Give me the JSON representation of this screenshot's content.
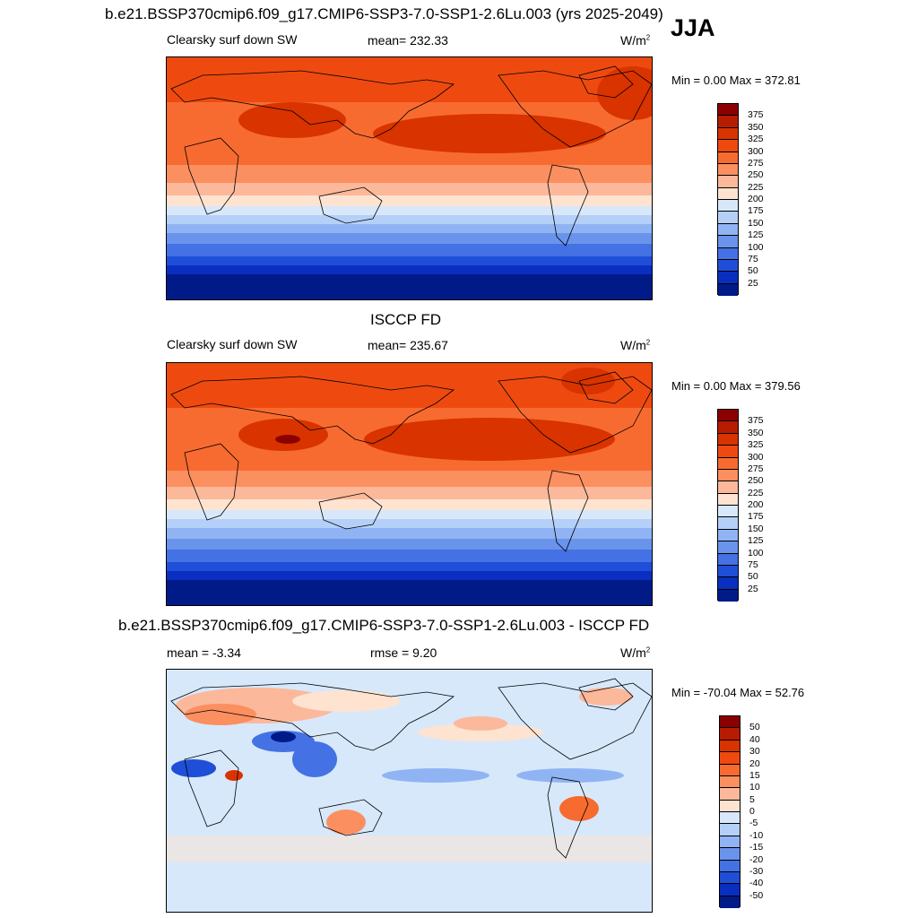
{
  "header": {
    "title": "b.e21.BSSP370cmip6.f09_g17.CMIP6-SSP3-7.0-SSP1-2.6Lu.003 (yrs 2025-2049)",
    "season": "JJA"
  },
  "panels": [
    {
      "id": "model",
      "title": "",
      "left_label": "Clearsky surf down SW",
      "center_label": "mean= 232.33",
      "units": "W/m",
      "units_sup": "2",
      "minmax": "Min =   0.00 Max = 372.81"
    },
    {
      "id": "obs",
      "title": "ISCCP FD",
      "left_label": "Clearsky surf down SW",
      "center_label": "mean= 235.67",
      "units": "W/m",
      "units_sup": "2",
      "minmax": "Min =   0.00 Max = 379.56"
    },
    {
      "id": "diff",
      "title": "b.e21.BSSP370cmip6.f09_g17.CMIP6-SSP3-7.0-SSP1-2.6Lu.003 - ISCCP FD",
      "left_label": "mean =  -3.34",
      "center_label": "rmse =    9.20",
      "units": "W/m",
      "units_sup": "2",
      "minmax": "Min = -70.04 Max =  52.76"
    }
  ],
  "colorbars": {
    "absolute": {
      "labels": [
        "375",
        "350",
        "325",
        "300",
        "275",
        "250",
        "225",
        "200",
        "175",
        "150",
        "125",
        "100",
        "75",
        "50",
        "25"
      ],
      "colors": [
        "#8b0000",
        "#b81c00",
        "#d93300",
        "#ee4a10",
        "#f86b30",
        "#fb8f60",
        "#fcb89a",
        "#fde3d0",
        "#d7e8fb",
        "#b5d0f8",
        "#90b4f3",
        "#6a93ec",
        "#4472e4",
        "#1f4fd8",
        "#0a2ec0",
        "#001a88"
      ]
    },
    "difference": {
      "labels": [
        "50",
        "40",
        "30",
        "20",
        "15",
        "10",
        "5",
        "0",
        "-5",
        "-10",
        "-15",
        "-20",
        "-30",
        "-40",
        "-50"
      ],
      "colors": [
        "#8b0000",
        "#b81c00",
        "#d93300",
        "#ee4a10",
        "#f86b30",
        "#fb8f60",
        "#fcb89a",
        "#fde3d0",
        "#d7e8fb",
        "#b5d0f8",
        "#90b4f3",
        "#6a93ec",
        "#4472e4",
        "#1f4fd8",
        "#0a2ec0",
        "#001a88"
      ]
    }
  }
}
